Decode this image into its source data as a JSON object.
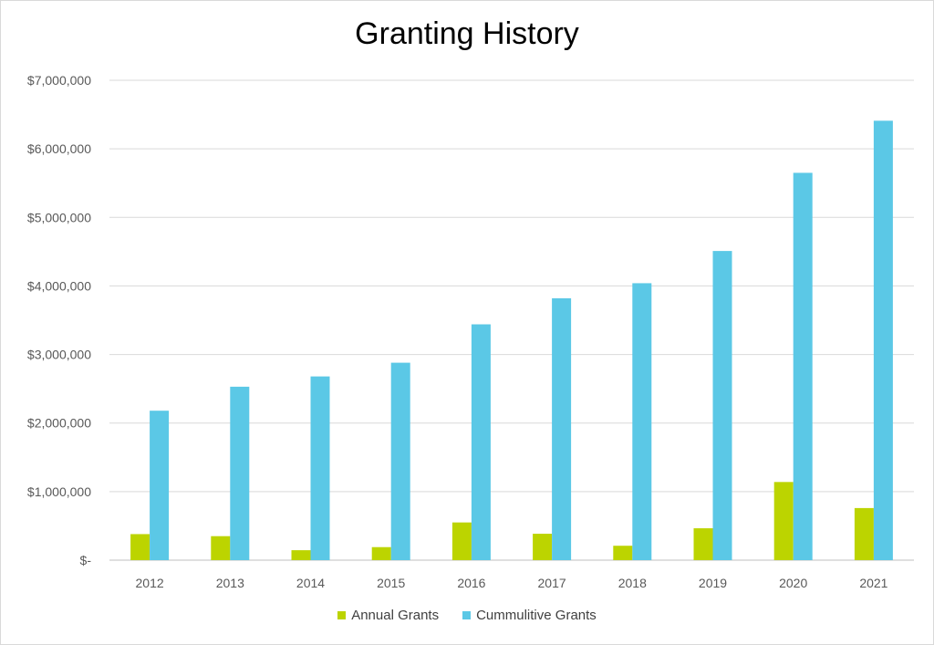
{
  "chart_data": {
    "type": "bar",
    "title": "Granting History",
    "xlabel": "",
    "ylabel": "",
    "categories": [
      "2012",
      "2013",
      "2014",
      "2015",
      "2016",
      "2017",
      "2018",
      "2019",
      "2020",
      "2021"
    ],
    "series": [
      {
        "name": "Annual Grants",
        "color": "#bcd400",
        "values": [
          380000,
          350000,
          145000,
          190000,
          550000,
          385000,
          210000,
          465000,
          1140000,
          760000
        ]
      },
      {
        "name": "Cummulitive Grants",
        "color": "#5bc8e6",
        "values": [
          2180000,
          2530000,
          2680000,
          2880000,
          3440000,
          3820000,
          4040000,
          4510000,
          5650000,
          6410000
        ]
      }
    ],
    "ylim": [
      0,
      7000000
    ],
    "yticks": [
      0,
      1000000,
      2000000,
      3000000,
      4000000,
      5000000,
      6000000,
      7000000
    ],
    "ytick_labels": [
      "$-",
      "$1,000,000",
      "$2,000,000",
      "$3,000,000",
      "$4,000,000",
      "$5,000,000",
      "$6,000,000",
      "$7,000,000"
    ],
    "grid": true,
    "legend_position": "bottom"
  }
}
